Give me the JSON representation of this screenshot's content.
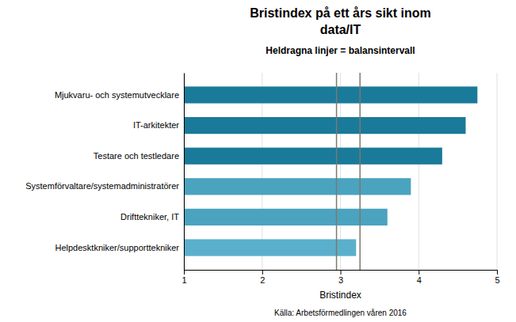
{
  "chart_data": {
    "type": "bar",
    "orientation": "horizontal",
    "title": [
      "Bristindex på ett års sikt inom",
      "data/IT"
    ],
    "subtitle": "Heldragna linjer = balansintervall",
    "categories": [
      "Mjukvaru- och systemutvecklare",
      "IT-arkitekter",
      "Testare och testledare",
      "Systemförvaltare/systemadministratörer",
      "Drifttekniker, IT",
      "Helpdesktkniker/supporttekniker"
    ],
    "values": [
      4.75,
      4.6,
      4.3,
      3.9,
      3.6,
      3.2
    ],
    "colors": [
      "#1a7a99",
      "#1a7a99",
      "#1a7a99",
      "#4aa3bf",
      "#4aa3bf",
      "#5ab0cc"
    ],
    "xlim": [
      1,
      5
    ],
    "xticks": [
      1,
      2,
      3,
      4,
      5
    ],
    "xlabel": "Bristindex",
    "grid": true,
    "reference_lines": [
      2.95,
      3.25
    ],
    "reference_line_color": "#7a7a6e",
    "source": "Källa: Arbetsförmedlingen våren 2016"
  }
}
